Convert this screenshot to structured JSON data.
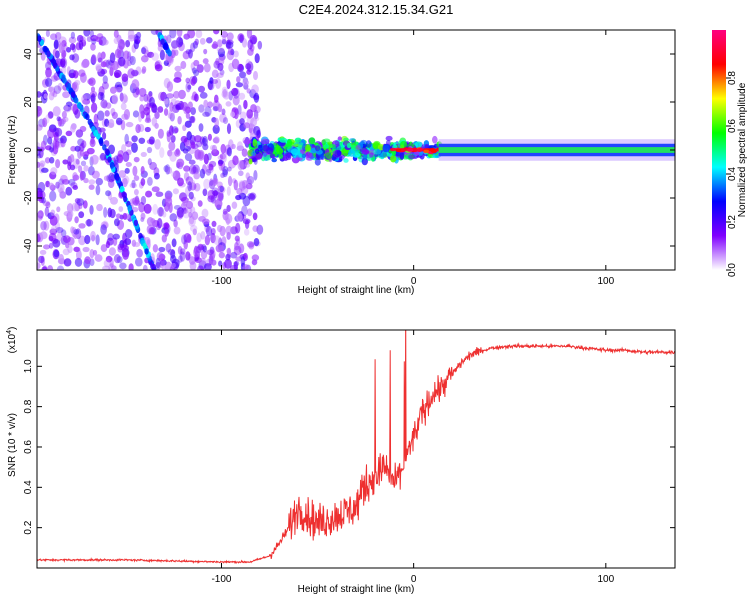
{
  "title": "C2E4.2024.312.15.34.G21",
  "chart_data": [
    {
      "type": "heatmap",
      "xlabel": "Height of straight line (km)",
      "ylabel": "Frequency (Hz)",
      "xlim": [
        -196,
        136
      ],
      "ylim": [
        -50,
        50
      ],
      "xticks": [
        -100,
        0,
        100
      ],
      "xtick_labels": [
        "-100",
        "0",
        "100"
      ],
      "yticks": [
        -40,
        -20,
        0,
        20,
        40
      ],
      "ytick_labels": [
        "-40",
        "-20",
        "0",
        "20",
        "40"
      ],
      "colorbar": {
        "label": "Normalized spectral amplitude",
        "range": [
          0,
          1
        ],
        "ticks": [
          0,
          0.2,
          0.4,
          0.6,
          0.8
        ],
        "tick_labels": [
          "0.0",
          "0.2",
          "0.4",
          "0.6",
          "0.8"
        ],
        "colormap": [
          "#ffffff",
          "#8000ff",
          "#0000ff",
          "#00ffff",
          "#00ff00",
          "#ffff00",
          "#ff0000",
          "#ff0080"
        ]
      },
      "features": {
        "diagonal_track_1": [
          [
            -196,
            48
          ],
          [
            -160,
            0
          ],
          [
            -135,
            -50
          ]
        ],
        "diagonal_track_2": [
          [
            -132,
            48
          ],
          [
            -127,
            40
          ]
        ],
        "central_band_frequency": 0,
        "scatter_region_x": [
          -196,
          -80
        ],
        "transition_region_x": [
          -85,
          15
        ],
        "steady_band_x": [
          15,
          136
        ]
      },
      "grid": false
    },
    {
      "type": "line",
      "xlabel": "Height of straight line (km)",
      "ylabel": "SNR (10 * v/v)",
      "y_multiplier_label": "(x10",
      "y_multiplier_exp": "4",
      "y_multiplier_close": ")",
      "xlim": [
        -196,
        136
      ],
      "ylim": [
        0,
        1.18
      ],
      "xticks": [
        -100,
        0,
        100
      ],
      "xtick_labels": [
        "-100",
        "0",
        "100"
      ],
      "yticks": [
        0.2,
        0.4,
        0.6,
        0.8,
        1.0
      ],
      "ytick_labels": [
        "0.2",
        "0.4",
        "0.6",
        "0.8",
        "1.0"
      ],
      "series": [
        {
          "color": "#ee3030",
          "x": [
            -196,
            -150,
            -100,
            -85,
            -75,
            -70,
            -65,
            -60,
            -55,
            -50,
            -40,
            -30,
            -25,
            -20,
            -15,
            -10,
            -5,
            0,
            5,
            10,
            15,
            20,
            25,
            30,
            40,
            50,
            60,
            70,
            80,
            90,
            100,
            110,
            120,
            130,
            136
          ],
          "y": [
            0.04,
            0.04,
            0.03,
            0.03,
            0.06,
            0.12,
            0.2,
            0.3,
            0.26,
            0.22,
            0.26,
            0.3,
            0.42,
            0.45,
            0.5,
            0.42,
            0.52,
            0.65,
            0.78,
            0.86,
            0.9,
            0.96,
            1.02,
            1.06,
            1.09,
            1.1,
            1.1,
            1.1,
            1.1,
            1.09,
            1.08,
            1.08,
            1.07,
            1.07,
            1.07
          ]
        }
      ],
      "grid": false
    }
  ]
}
